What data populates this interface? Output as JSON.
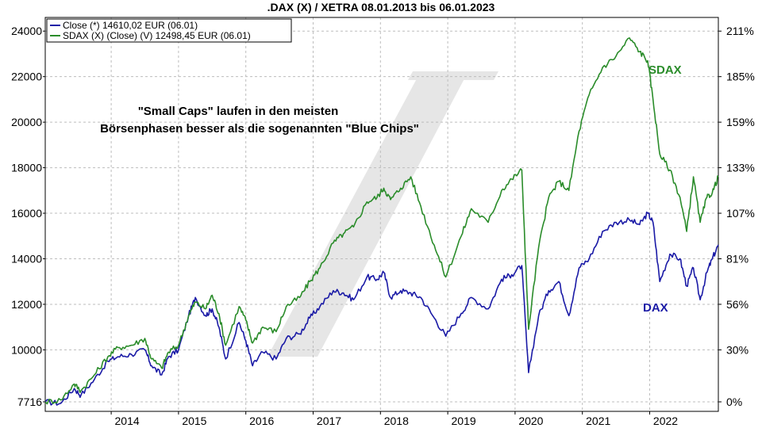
{
  "chart_data": {
    "type": "line",
    "title": ".DAX (X) / XETRA 08.01.2013 bis 06.01.2023",
    "xlabel": "",
    "ylabel": "",
    "x_range": [
      2013.02,
      2023.02
    ],
    "x_ticks": [
      {
        "label": "2014",
        "value": 2014.0
      },
      {
        "label": "2015",
        "value": 2015.0
      },
      {
        "label": "2016",
        "value": 2016.0
      },
      {
        "label": "2017",
        "value": 2017.0
      },
      {
        "label": "2018",
        "value": 2018.0
      },
      {
        "label": "2019",
        "value": 2019.0
      },
      {
        "label": "2020",
        "value": 2020.0
      },
      {
        "label": "2021",
        "value": 2021.0
      },
      {
        "label": "2022",
        "value": 2022.0
      }
    ],
    "y_left": {
      "range": [
        7716,
        24600
      ],
      "ticks": [
        "7716",
        "10000",
        "12000",
        "14000",
        "16000",
        "18000",
        "20000",
        "22000",
        "24000"
      ]
    },
    "y_right": {
      "ticks": [
        "0%",
        "30%",
        "56%",
        "81%",
        "107%",
        "133%",
        "159%",
        "185%",
        "211%"
      ]
    },
    "grid": true,
    "legend_position": "top-left",
    "series": [
      {
        "name": "Close (*) 14610,02 EUR (06.01)",
        "label": "DAX",
        "color": "#1a1aa6",
        "points": [
          [
            2013.02,
            7716
          ],
          [
            2013.25,
            7650
          ],
          [
            2013.45,
            8300
          ],
          [
            2013.55,
            8000
          ],
          [
            2013.75,
            8700
          ],
          [
            2013.95,
            9500
          ],
          [
            2014.1,
            9700
          ],
          [
            2014.3,
            9800
          ],
          [
            2014.5,
            10000
          ],
          [
            2014.6,
            9300
          ],
          [
            2014.75,
            8900
          ],
          [
            2014.85,
            9700
          ],
          [
            2015.0,
            10000
          ],
          [
            2015.15,
            11500
          ],
          [
            2015.25,
            12300
          ],
          [
            2015.4,
            11500
          ],
          [
            2015.5,
            11800
          ],
          [
            2015.6,
            11000
          ],
          [
            2015.7,
            9600
          ],
          [
            2015.9,
            11200
          ],
          [
            2016.0,
            10400
          ],
          [
            2016.1,
            9300
          ],
          [
            2016.25,
            9900
          ],
          [
            2016.45,
            9600
          ],
          [
            2016.6,
            10500
          ],
          [
            2016.8,
            10700
          ],
          [
            2016.95,
            11400
          ],
          [
            2017.1,
            11900
          ],
          [
            2017.3,
            12600
          ],
          [
            2017.45,
            12500
          ],
          [
            2017.6,
            12200
          ],
          [
            2017.8,
            13200
          ],
          [
            2017.95,
            13100
          ],
          [
            2018.05,
            13400
          ],
          [
            2018.15,
            12300
          ],
          [
            2018.3,
            12600
          ],
          [
            2018.45,
            12500
          ],
          [
            2018.6,
            12300
          ],
          [
            2018.8,
            11400
          ],
          [
            2018.97,
            10600
          ],
          [
            2019.2,
            11600
          ],
          [
            2019.35,
            12300
          ],
          [
            2019.6,
            11800
          ],
          [
            2019.8,
            13100
          ],
          [
            2019.95,
            13300
          ],
          [
            2020.1,
            13700
          ],
          [
            2020.2,
            9000
          ],
          [
            2020.35,
            11500
          ],
          [
            2020.5,
            12600
          ],
          [
            2020.65,
            13000
          ],
          [
            2020.8,
            11500
          ],
          [
            2020.95,
            13600
          ],
          [
            2021.1,
            14000
          ],
          [
            2021.3,
            15200
          ],
          [
            2021.5,
            15600
          ],
          [
            2021.7,
            15700
          ],
          [
            2021.85,
            15500
          ],
          [
            2021.97,
            16000
          ],
          [
            2022.05,
            15600
          ],
          [
            2022.15,
            13000
          ],
          [
            2022.3,
            14200
          ],
          [
            2022.45,
            14000
          ],
          [
            2022.55,
            12800
          ],
          [
            2022.65,
            13600
          ],
          [
            2022.75,
            12200
          ],
          [
            2022.85,
            13400
          ],
          [
            2022.93,
            14000
          ],
          [
            2023.02,
            14610
          ]
        ]
      },
      {
        "name": "SDAX (X) (Close) (V) 12498,45 EUR (06.01)",
        "label": "SDAX",
        "color": "#2a8c2a",
        "points": [
          [
            2013.02,
            7716
          ],
          [
            2013.25,
            7800
          ],
          [
            2013.45,
            8500
          ],
          [
            2013.55,
            8200
          ],
          [
            2013.75,
            8900
          ],
          [
            2013.95,
            9700
          ],
          [
            2014.1,
            10100
          ],
          [
            2014.3,
            10200
          ],
          [
            2014.5,
            10500
          ],
          [
            2014.6,
            9600
          ],
          [
            2014.75,
            9200
          ],
          [
            2014.85,
            9900
          ],
          [
            2015.0,
            10200
          ],
          [
            2015.15,
            11500
          ],
          [
            2015.25,
            12100
          ],
          [
            2015.4,
            11800
          ],
          [
            2015.5,
            12400
          ],
          [
            2015.6,
            11600
          ],
          [
            2015.7,
            10200
          ],
          [
            2015.9,
            11900
          ],
          [
            2016.0,
            11300
          ],
          [
            2016.1,
            10300
          ],
          [
            2016.25,
            11000
          ],
          [
            2016.45,
            10800
          ],
          [
            2016.6,
            11900
          ],
          [
            2016.8,
            12300
          ],
          [
            2016.95,
            13000
          ],
          [
            2017.1,
            13600
          ],
          [
            2017.3,
            14700
          ],
          [
            2017.45,
            15100
          ],
          [
            2017.6,
            15400
          ],
          [
            2017.8,
            16500
          ],
          [
            2017.95,
            16700
          ],
          [
            2018.05,
            17100
          ],
          [
            2018.15,
            16600
          ],
          [
            2018.3,
            17100
          ],
          [
            2018.45,
            17600
          ],
          [
            2018.6,
            16300
          ],
          [
            2018.8,
            14600
          ],
          [
            2018.97,
            13200
          ],
          [
            2019.2,
            15000
          ],
          [
            2019.35,
            16200
          ],
          [
            2019.6,
            15600
          ],
          [
            2019.8,
            17000
          ],
          [
            2019.95,
            17500
          ],
          [
            2020.1,
            17900
          ],
          [
            2020.2,
            10900
          ],
          [
            2020.35,
            14500
          ],
          [
            2020.5,
            16700
          ],
          [
            2020.65,
            17400
          ],
          [
            2020.8,
            17000
          ],
          [
            2020.95,
            19600
          ],
          [
            2021.1,
            21200
          ],
          [
            2021.3,
            22400
          ],
          [
            2021.5,
            22900
          ],
          [
            2021.7,
            23700
          ],
          [
            2021.85,
            23100
          ],
          [
            2021.97,
            22700
          ],
          [
            2022.05,
            21000
          ],
          [
            2022.15,
            18600
          ],
          [
            2022.3,
            17900
          ],
          [
            2022.45,
            16700
          ],
          [
            2022.55,
            15200
          ],
          [
            2022.65,
            17600
          ],
          [
            2022.75,
            15600
          ],
          [
            2022.85,
            16700
          ],
          [
            2022.93,
            16900
          ],
          [
            2023.02,
            17600
          ]
        ]
      }
    ],
    "annotations": [
      "\"Small Caps\" laufen in den meisten",
      "Börsenphasen besser als die sogenannten \"Blue Chips\""
    ]
  }
}
